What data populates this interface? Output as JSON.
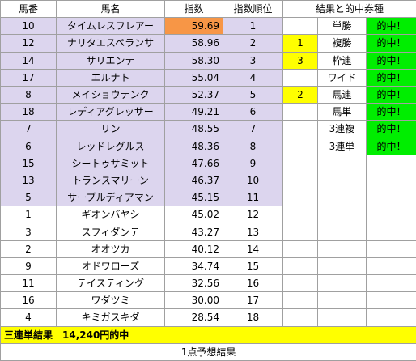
{
  "header": {
    "num": "馬番",
    "name": "馬名",
    "index": "指数",
    "rank": "指数順位",
    "result": "結果と的中券種"
  },
  "rows": [
    {
      "num": "10",
      "name": "タイムレスフレアー",
      "index": "59.69",
      "rank": "1",
      "res_num": "",
      "bet": "単勝",
      "hit": "的中！"
    },
    {
      "num": "12",
      "name": "ナリタエスペランサ",
      "index": "58.96",
      "rank": "2",
      "res_num": "1",
      "bet": "複勝",
      "hit": "的中！"
    },
    {
      "num": "14",
      "name": "サリエンテ",
      "index": "58.30",
      "rank": "3",
      "res_num": "3",
      "bet": "枠連",
      "hit": "的中！"
    },
    {
      "num": "17",
      "name": "エルナト",
      "index": "55.04",
      "rank": "4",
      "res_num": "",
      "bet": "ワイド",
      "hit": "的中！"
    },
    {
      "num": "8",
      "name": "メイショウテンク",
      "index": "52.37",
      "rank": "5",
      "res_num": "2",
      "bet": "馬連",
      "hit": "的中！"
    },
    {
      "num": "18",
      "name": "レディアグレッサー",
      "index": "49.21",
      "rank": "6",
      "res_num": "",
      "bet": "馬単",
      "hit": "的中！"
    },
    {
      "num": "7",
      "name": "リン",
      "index": "48.55",
      "rank": "7",
      "res_num": "",
      "bet": "3連複",
      "hit": "的中！"
    },
    {
      "num": "6",
      "name": "レッドレグルス",
      "index": "48.36",
      "rank": "8",
      "res_num": "",
      "bet": "3連単",
      "hit": "的中！"
    },
    {
      "num": "15",
      "name": "シートゥサミット",
      "index": "47.66",
      "rank": "9",
      "res_num": "",
      "bet": "",
      "hit": ""
    },
    {
      "num": "13",
      "name": "トランスマリーン",
      "index": "46.37",
      "rank": "10",
      "res_num": "",
      "bet": "",
      "hit": ""
    },
    {
      "num": "5",
      "name": "サーブルディアマン",
      "index": "45.15",
      "rank": "11",
      "res_num": "",
      "bet": "",
      "hit": ""
    },
    {
      "num": "1",
      "name": "ギオンバヤシ",
      "index": "45.02",
      "rank": "12",
      "res_num": "",
      "bet": "",
      "hit": ""
    },
    {
      "num": "3",
      "name": "スフィダンテ",
      "index": "43.27",
      "rank": "13",
      "res_num": "",
      "bet": "",
      "hit": ""
    },
    {
      "num": "2",
      "name": "オオツカ",
      "index": "40.12",
      "rank": "14",
      "res_num": "",
      "bet": "",
      "hit": ""
    },
    {
      "num": "9",
      "name": "オドワローズ",
      "index": "34.74",
      "rank": "15",
      "res_num": "",
      "bet": "",
      "hit": ""
    },
    {
      "num": "11",
      "name": "テイスティング",
      "index": "32.56",
      "rank": "16",
      "res_num": "",
      "bet": "",
      "hit": ""
    },
    {
      "num": "16",
      "name": "ワダツミ",
      "index": "30.00",
      "rank": "17",
      "res_num": "",
      "bet": "",
      "hit": ""
    },
    {
      "num": "4",
      "name": "キミガスキダ",
      "index": "28.54",
      "rank": "18",
      "res_num": "",
      "bet": "",
      "hit": ""
    }
  ],
  "summary": "三連単結果　14,240円的中",
  "footer": "1点予想結果",
  "colors": {
    "highlight_row_bg": "#dcd5ee",
    "top_index_bg": "#f79646",
    "result_number_bg": "#ffff00",
    "hit_bg": "#00ee00",
    "summary_bg": "#ffff00"
  }
}
